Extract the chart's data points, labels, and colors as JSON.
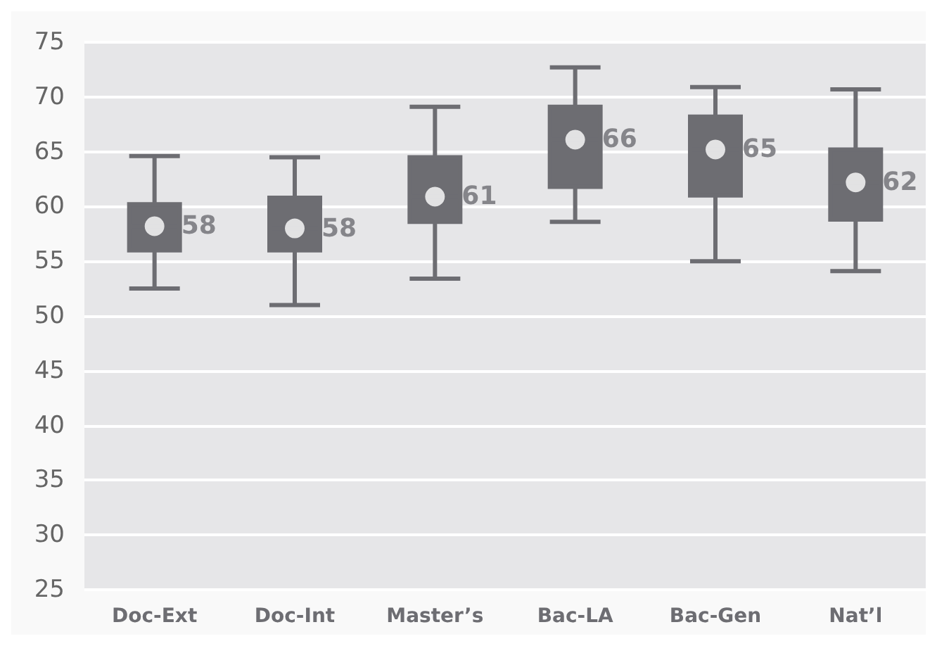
{
  "chart_data": {
    "type": "box",
    "categories": [
      "Doc-Ext",
      "Doc-Int",
      "Master’s",
      "Bac-LA",
      "Bac-Gen",
      "Nat’l"
    ],
    "color": "#6d6d72",
    "boxes": [
      {
        "low": 52.5,
        "q1": 56.0,
        "median": 58.2,
        "q3": 60.2,
        "high": 64.6
      },
      {
        "low": 51.0,
        "q1": 56.0,
        "median": 58.0,
        "q3": 60.8,
        "high": 64.5
      },
      {
        "low": 53.4,
        "q1": 58.6,
        "median": 60.9,
        "q3": 64.5,
        "high": 69.1
      },
      {
        "low": 58.6,
        "q1": 61.8,
        "median": 66.1,
        "q3": 69.1,
        "high": 72.7
      },
      {
        "low": 55.0,
        "q1": 61.0,
        "median": 65.2,
        "q3": 68.2,
        "high": 70.9
      },
      {
        "low": 54.1,
        "q1": 58.8,
        "median": 62.2,
        "q3": 65.2,
        "high": 70.7
      }
    ],
    "series": [
      {
        "type": "scatter",
        "color": "#ffffff",
        "marker": "circle",
        "x": [
          "Doc-Ext",
          "Doc-Int",
          "Master’s",
          "Bac-LA",
          "Bac-Gen",
          "Nat’l"
        ],
        "values": [
          58.2,
          58.0,
          60.9,
          66.1,
          65.2,
          62.2
        ],
        "value_labels": [
          "58",
          "58",
          "61",
          "66",
          "65",
          "62"
        ]
      }
    ],
    "ylim": [
      25,
      75
    ],
    "yticks": [
      25,
      30,
      35,
      40,
      45,
      50,
      55,
      60,
      65,
      70,
      75
    ],
    "grid": "y"
  }
}
